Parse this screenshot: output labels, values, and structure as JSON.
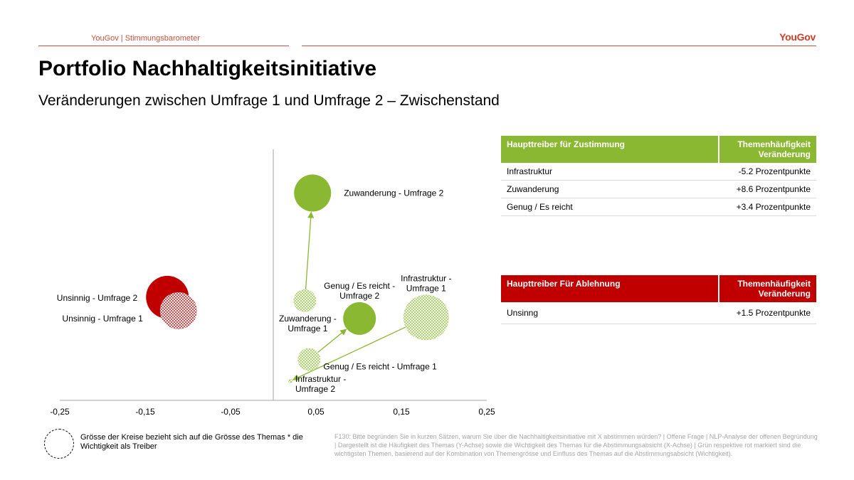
{
  "header": {
    "source": "YouGov | Stimmungsbarometer",
    "logo": "YouGov",
    "title": "Portfolio Nachhaltigkeitsinitiative",
    "subtitle": "Veränderungen zwischen Umfrage 1 und Umfrage 2 – Zwischenstand"
  },
  "colors": {
    "accent": "#c8503c",
    "green": "#8ab833",
    "red": "#c00000",
    "green_pattern": "#c9d9a8",
    "red_pattern": "#c99090"
  },
  "chart_data": {
    "type": "scatter",
    "xlim": [
      -0.25,
      0.25
    ],
    "ylim": [
      0,
      1
    ],
    "x_ticks": [
      "-0,25",
      "-0,15",
      "-0,05",
      "0,05",
      "0,15",
      "0,25"
    ],
    "x_tick_values": [
      -0.25,
      -0.15,
      -0.05,
      0.05,
      0.15,
      0.25
    ],
    "y_axis_at_x": 0,
    "points": [
      {
        "label": "Zuwanderung - Umfrage 2",
        "x": 0.046,
        "y": 0.826,
        "size": 26,
        "color": "#8ab833",
        "fill": "solid",
        "label_lines": [
          "Zuwanderung - Umfrage 2"
        ],
        "label_anchor": "right"
      },
      {
        "label": "Zuwanderung - Umfrage 1",
        "x": 0.037,
        "y": 0.397,
        "size": 16,
        "color": "#8ab833",
        "fill": "pattern",
        "label_lines": [
          "Zuwanderung -",
          "Umfrage 1"
        ],
        "label_anchor": "below-left"
      },
      {
        "label": "Genug / Es reicht - Umfrage 2",
        "x": 0.101,
        "y": 0.326,
        "size": 23,
        "color": "#8ab833",
        "fill": "solid",
        "label_lines": [
          "Genug / Es reicht -",
          "Umfrage 2"
        ],
        "label_anchor": "above"
      },
      {
        "label": "Genug / Es reicht - Umfrage 1",
        "x": 0.042,
        "y": 0.163,
        "size": 16,
        "color": "#8ab833",
        "fill": "pattern",
        "label_lines": [
          "Genug / Es reicht - Umfrage 1"
        ],
        "label_anchor": "right-below"
      },
      {
        "label": "Infrastruktur - Umfrage 1",
        "x": 0.179,
        "y": 0.33,
        "size": 32,
        "color": "#8ab833",
        "fill": "pattern",
        "label_lines": [
          "Infrastruktur -",
          "Umfrage 1"
        ],
        "label_anchor": "above"
      },
      {
        "label": "Infrastruktur - Umfrage 2",
        "x": 0.02,
        "y": 0.077,
        "size": 3,
        "color": "#8ab833",
        "fill": "pattern",
        "label_lines": [
          "Infrastruktur -",
          "Umfrage 2"
        ],
        "label_anchor": "right-below"
      },
      {
        "label": "Unsinnig - Umfrage 2",
        "x": -0.124,
        "y": 0.411,
        "size": 30,
        "color": "#c00000",
        "fill": "solid",
        "label_lines": [
          "Unsinnig - Umfrage 2"
        ],
        "label_anchor": "left"
      },
      {
        "label": "Unsinnig - Umfrage 1",
        "x": -0.111,
        "y": 0.357,
        "size": 26,
        "color": "#c00000",
        "fill": "pattern",
        "label_lines": [
          "Unsinnig - Umfrage 1"
        ],
        "label_anchor": "left-below"
      }
    ],
    "arrows": [
      {
        "from": "Zuwanderung - Umfrage 1",
        "to": "Zuwanderung - Umfrage 2"
      },
      {
        "from": "Genug / Es reicht - Umfrage 1",
        "to": "Genug / Es reicht - Umfrage 2"
      },
      {
        "from": "Infrastruktur - Umfrage 1",
        "to": "Infrastruktur - Umfrage 2"
      }
    ]
  },
  "table_zustimmung": {
    "header_left": "Haupttreiber für Zustimmung",
    "header_right_1": "Themenhäufigkeit",
    "header_right_2": "Veränderung",
    "rows": [
      {
        "label": "Infrastruktur",
        "value": "-5.2 Prozentpunkte"
      },
      {
        "label": "Zuwanderung",
        "value": "+8.6 Prozentpunkte"
      },
      {
        "label": "Genug / Es reicht",
        "value": "+3.4 Prozentpunkte"
      }
    ]
  },
  "table_ablehnung": {
    "header_left": "Haupttreiber Für Ablehnung",
    "header_right_1": "Themenhäufigkeit",
    "header_right_2": "Veränderung",
    "rows": [
      {
        "label": "Unsinng",
        "value": "+1.5 Prozentpunkte"
      }
    ]
  },
  "legend": {
    "text": "Grösse der Kreise bezieht sich auf die Grösse des Themas * die Wichtigkeit als Treiber"
  },
  "footnote": "F130: Bitte begründen Sie in kurzen Sätzen, warum Sie über die Nachhaltigkeitsinitiative mit X abstimmen würden? | Offene Frage | NLP-Analyse der offenen Begründung | Dargestellt ist die Häufigkeit des Themas (Y-Achse) sowie die Wichtigkeit des Themas für die Abstimmungsabsicht (X-Achse) | Grün respektive rot markiert sind die wichtigsten Themen, basierend auf der Kombination von Themengrösse und Einfluss des Themas auf die Abstimmungsabsicht (Wichtigkeit)."
}
